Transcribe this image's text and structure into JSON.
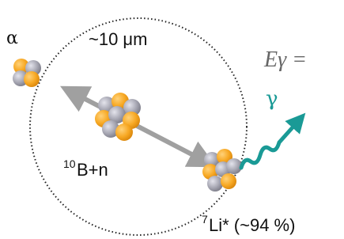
{
  "labels": {
    "alpha": "α",
    "size": "~10 μm",
    "energy": "Eγ =",
    "gamma": "γ",
    "reactant": {
      "superscript": "10",
      "text": "B+n"
    },
    "product": {
      "superscript": "7",
      "text": "Li* (~94 %)"
    }
  }
}
